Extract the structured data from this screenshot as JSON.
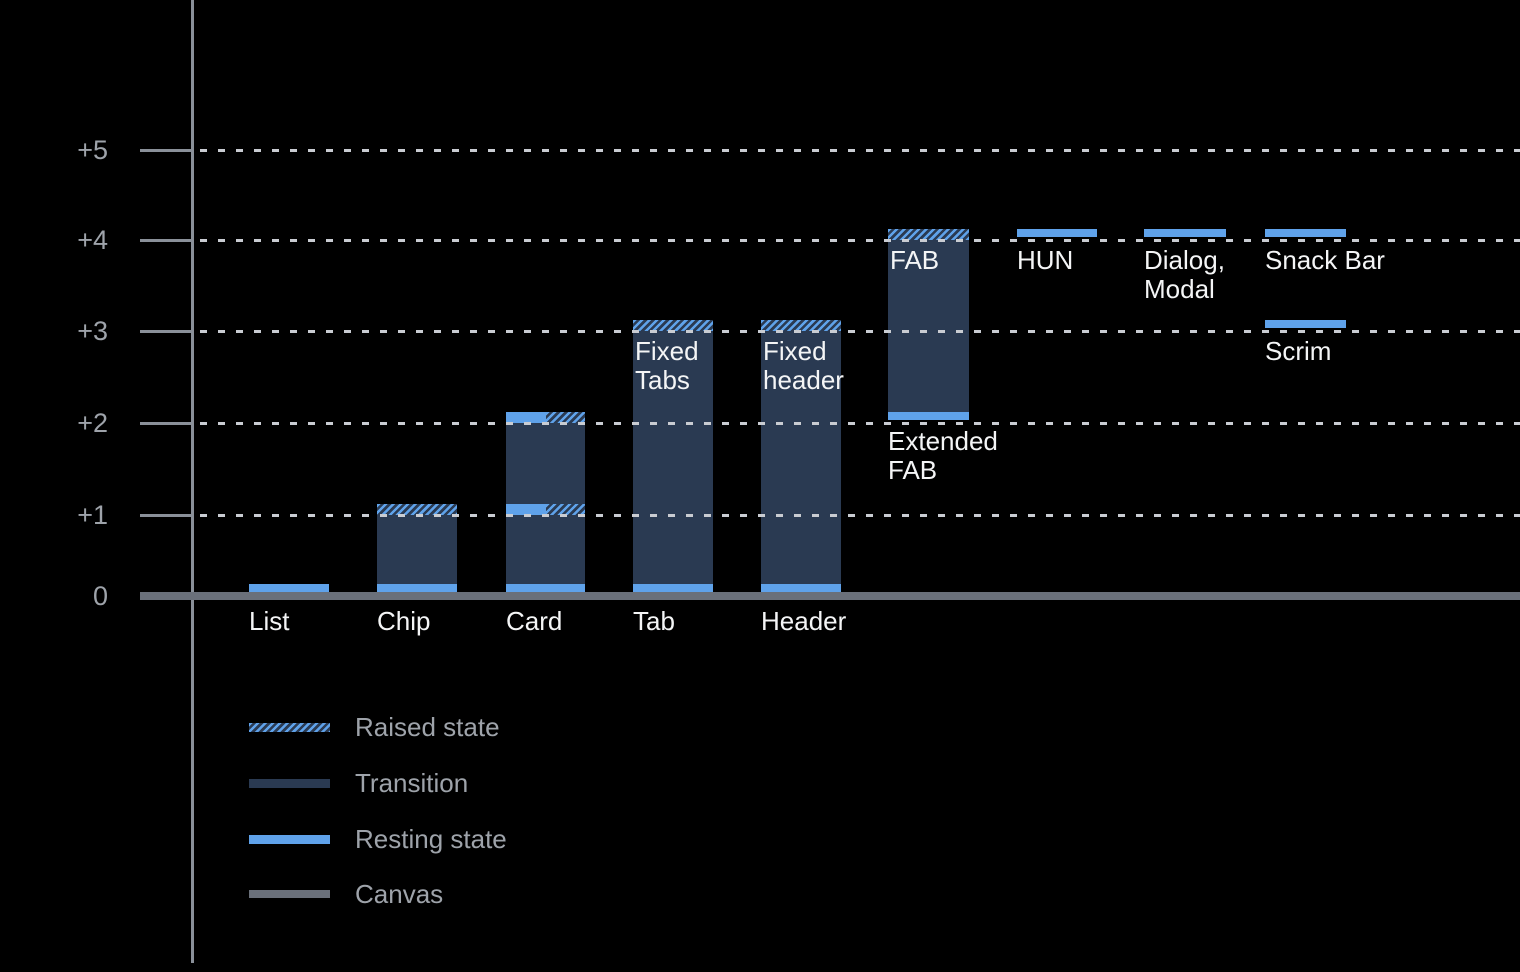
{
  "chart_data": {
    "type": "bar",
    "title": "",
    "xlabel": "",
    "ylabel": "",
    "ylim": [
      0,
      5
    ],
    "grid": "dotted-horizontal",
    "background_color": "#000000",
    "colors": {
      "resting_state": "#5FA2EA",
      "transition": "#2A3A52",
      "canvas": "#6A707A",
      "axis": "#8A9099",
      "axis_text": "#9EA3AA",
      "grid_dots": "#C9CCD2",
      "label_text": "#F4F5F6"
    },
    "y_axis": {
      "ticks": [
        {
          "label": "+5",
          "value": 5
        },
        {
          "label": "+4",
          "value": 4
        },
        {
          "label": "+3",
          "value": 3
        },
        {
          "label": "+2",
          "value": 2
        },
        {
          "label": "+1",
          "value": 1
        },
        {
          "label": "0",
          "value": 0
        }
      ]
    },
    "legend": {
      "position": "bottom-left",
      "items": [
        {
          "label": "Raised state",
          "swatch": "hatch"
        },
        {
          "label": "Transition",
          "swatch": "navy"
        },
        {
          "label": "Resting state",
          "swatch": "blue"
        },
        {
          "label": "Canvas",
          "swatch": "gray"
        }
      ]
    },
    "bars": [
      {
        "name": "List",
        "column": 0,
        "resting_elevation": 0,
        "segments": [
          {
            "kind": "resting",
            "level": 0
          }
        ],
        "labels": [
          {
            "lines": [
              "List"
            ],
            "placement": "below-baseline",
            "at": 0
          }
        ]
      },
      {
        "name": "Chip",
        "column": 1,
        "resting_elevation": 0,
        "raised_elevation": 1,
        "segments": [
          {
            "kind": "raised",
            "level": 1
          },
          {
            "kind": "transition",
            "from": 0,
            "to": 1
          },
          {
            "kind": "resting",
            "level": 0
          }
        ],
        "labels": [
          {
            "lines": [
              "Chip"
            ],
            "placement": "below-baseline",
            "at": 0
          }
        ]
      },
      {
        "name": "Card",
        "column": 2,
        "resting_elevation": 0,
        "raised_elevation": 2,
        "segments": [
          {
            "kind": "resting-raised",
            "level": 2
          },
          {
            "kind": "transition",
            "from": 1,
            "to": 2
          },
          {
            "kind": "resting-raised",
            "level": 1
          },
          {
            "kind": "transition",
            "from": 0,
            "to": 1
          },
          {
            "kind": "resting",
            "level": 0
          }
        ],
        "labels": [
          {
            "lines": [
              "Card"
            ],
            "placement": "below-baseline",
            "at": 0
          }
        ]
      },
      {
        "name": "Tab",
        "column": 3,
        "resting_elevation": 0,
        "raised_elevation": 3,
        "segments": [
          {
            "kind": "raised",
            "level": 3
          },
          {
            "kind": "transition",
            "from": 0,
            "to": 3
          },
          {
            "kind": "resting",
            "level": 0
          }
        ],
        "labels": [
          {
            "lines": [
              "Tab"
            ],
            "placement": "below-baseline",
            "at": 0
          },
          {
            "lines": [
              "Fixed",
              "Tabs"
            ],
            "placement": "inside-top",
            "at": 3
          }
        ]
      },
      {
        "name": "Header",
        "column": 4,
        "resting_elevation": 0,
        "raised_elevation": 3,
        "segments": [
          {
            "kind": "raised",
            "level": 3
          },
          {
            "kind": "transition",
            "from": 0,
            "to": 3
          },
          {
            "kind": "resting",
            "level": 0
          }
        ],
        "labels": [
          {
            "lines": [
              "Header"
            ],
            "placement": "below-baseline",
            "at": 0
          },
          {
            "lines": [
              "Fixed",
              "header"
            ],
            "placement": "inside-top",
            "at": 3
          }
        ]
      },
      {
        "name": "FAB",
        "column": 5,
        "resting_elevation": 2,
        "raised_elevation": 4,
        "segments": [
          {
            "kind": "raised",
            "level": 4
          },
          {
            "kind": "transition",
            "from": 2,
            "to": 4
          },
          {
            "kind": "resting",
            "level": 2
          }
        ],
        "labels": [
          {
            "lines": [
              "FAB"
            ],
            "placement": "inside-top",
            "at": 4
          },
          {
            "lines": [
              "Extended",
              "FAB"
            ],
            "placement": "below-bar",
            "at": 2
          }
        ]
      },
      {
        "name": "HUN",
        "column": 6,
        "resting_elevation": 4,
        "segments": [
          {
            "kind": "resting",
            "level": 4
          }
        ],
        "labels": [
          {
            "lines": [
              "HUN"
            ],
            "placement": "below-line",
            "at": 4
          }
        ]
      },
      {
        "name": "Dialog, Modal",
        "column": 7,
        "resting_elevation": 4,
        "segments": [
          {
            "kind": "resting",
            "level": 4
          }
        ],
        "labels": [
          {
            "lines": [
              "Dialog,",
              "Modal"
            ],
            "placement": "below-line",
            "at": 4
          }
        ]
      },
      {
        "name": "Snack Bar",
        "column": 8,
        "resting_elevation": 4,
        "segments": [
          {
            "kind": "resting",
            "level": 4
          }
        ],
        "labels": [
          {
            "lines": [
              "Snack Bar"
            ],
            "placement": "below-line",
            "at": 4
          }
        ]
      },
      {
        "name": "Scrim",
        "column": 8,
        "resting_elevation": 3,
        "segments": [
          {
            "kind": "resting",
            "level": 3
          }
        ],
        "labels": [
          {
            "lines": [
              "Scrim"
            ],
            "placement": "below-line",
            "at": 3
          }
        ]
      }
    ]
  }
}
